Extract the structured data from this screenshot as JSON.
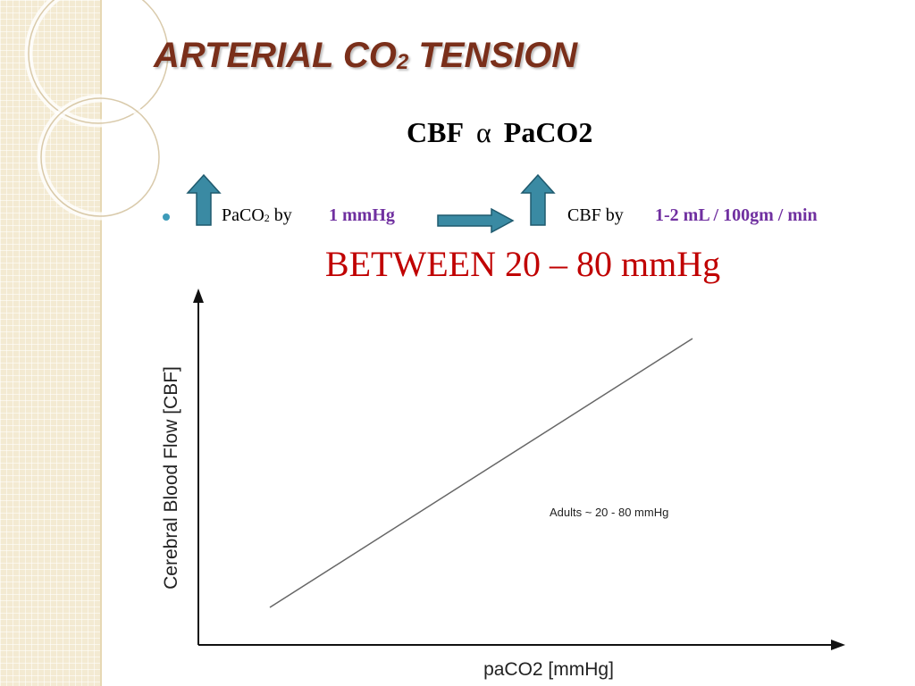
{
  "slide": {
    "title_main": "ARTERIAL CO",
    "title_sub": "2",
    "title_tail": " TENSION",
    "formula": {
      "left": "CBF",
      "symbol": "α",
      "right": "PaCO2"
    },
    "bullet": {
      "paco2_text": "PaCO",
      "paco2_sub": "2",
      "by_1": " by",
      "amount": "1 mmHg",
      "cbf_by": "CBF by",
      "rate": "1-2 mL / 100gm / min"
    },
    "range": "BETWEEN 20 – 80 mmHg",
    "colors": {
      "title": "#7a2f1a",
      "accent": "#7030a0",
      "range": "#c00000",
      "arrow": "#3a8aa3"
    }
  },
  "chart_data": {
    "type": "line",
    "ylabel": "Cerebral Blood Flow [CBF]",
    "xlabel": "paCO2 [mmHg]",
    "annotation": "Adults ~ 20 - 80 mmHg",
    "x": [
      20,
      80
    ],
    "series": [
      {
        "values": [
          20,
          80
        ]
      }
    ],
    "ticks_shown": false,
    "grid": false
  }
}
